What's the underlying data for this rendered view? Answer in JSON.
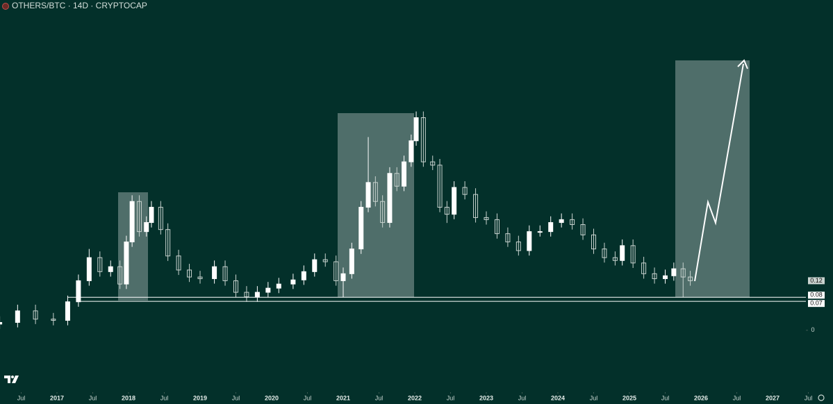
{
  "chart_data": {
    "type": "candlestick",
    "title": "OTHERS/BTC · 14D · CRYPTOCAP",
    "x": [
      2016.2,
      2016.45,
      2016.7,
      2016.95,
      2017.15,
      2017.3,
      2017.45,
      2017.6,
      2017.75,
      2017.88,
      2017.97,
      2018.05,
      2018.15,
      2018.25,
      2018.32,
      2018.45,
      2018.55,
      2018.7,
      2018.85,
      2019.0,
      2019.2,
      2019.35,
      2019.5,
      2019.65,
      2019.8,
      2019.95,
      2020.1,
      2020.3,
      2020.45,
      2020.6,
      2020.75,
      2020.9,
      2021.0,
      2021.12,
      2021.25,
      2021.35,
      2021.45,
      2021.55,
      2021.65,
      2021.75,
      2021.85,
      2021.95,
      2022.02,
      2022.12,
      2022.25,
      2022.35,
      2022.45,
      2022.55,
      2022.7,
      2022.85,
      2023.0,
      2023.15,
      2023.3,
      2023.45,
      2023.6,
      2023.75,
      2023.9,
      2024.05,
      2024.2,
      2024.35,
      2024.5,
      2024.65,
      2024.8,
      2024.9,
      2025.05,
      2025.2,
      2025.35,
      2025.5,
      2025.62,
      2025.75,
      2025.85
    ],
    "open": [
      0.015,
      0.019,
      0.047,
      0.027,
      0.024,
      0.069,
      0.12,
      0.176,
      0.142,
      0.154,
      0.112,
      0.214,
      0.312,
      0.239,
      0.261,
      0.298,
      0.244,
      0.18,
      0.146,
      0.129,
      0.125,
      0.154,
      0.12,
      0.092,
      0.081,
      0.092,
      0.102,
      0.112,
      0.122,
      0.142,
      0.171,
      0.166,
      0.12,
      0.137,
      0.197,
      0.298,
      0.358,
      0.312,
      0.261,
      0.38,
      0.349,
      0.408,
      0.459,
      0.515,
      0.408,
      0.4,
      0.298,
      0.281,
      0.346,
      0.329,
      0.273,
      0.268,
      0.234,
      0.214,
      0.193,
      0.239,
      0.239,
      0.261,
      0.268,
      0.256,
      0.231,
      0.197,
      0.176,
      0.169,
      0.205,
      0.163,
      0.137,
      0.125,
      0.132,
      0.149,
      0.129
    ],
    "high": [
      0.034,
      0.062,
      0.062,
      0.042,
      0.084,
      0.135,
      0.197,
      0.191,
      0.169,
      0.169,
      0.229,
      0.327,
      0.327,
      0.276,
      0.313,
      0.313,
      0.259,
      0.195,
      0.161,
      0.144,
      0.169,
      0.169,
      0.135,
      0.107,
      0.107,
      0.117,
      0.127,
      0.137,
      0.157,
      0.186,
      0.186,
      0.181,
      0.152,
      0.212,
      0.313,
      0.468,
      0.373,
      0.327,
      0.395,
      0.395,
      0.423,
      0.474,
      0.53,
      0.53,
      0.423,
      0.415,
      0.313,
      0.361,
      0.361,
      0.344,
      0.288,
      0.283,
      0.249,
      0.229,
      0.254,
      0.254,
      0.276,
      0.283,
      0.283,
      0.271,
      0.246,
      0.212,
      0.191,
      0.22,
      0.22,
      0.178,
      0.152,
      0.147,
      0.164,
      0.164,
      0.144
    ],
    "low": [
      0.003,
      0.007,
      0.015,
      0.012,
      0.012,
      0.057,
      0.108,
      0.13,
      0.13,
      0.1,
      0.1,
      0.202,
      0.227,
      0.227,
      0.249,
      0.232,
      0.168,
      0.134,
      0.117,
      0.113,
      0.113,
      0.108,
      0.08,
      0.069,
      0.069,
      0.08,
      0.09,
      0.1,
      0.11,
      0.13,
      0.154,
      0.108,
      0.08,
      0.125,
      0.185,
      0.286,
      0.3,
      0.249,
      0.249,
      0.337,
      0.337,
      0.396,
      0.447,
      0.396,
      0.388,
      0.286,
      0.26,
      0.269,
      0.317,
      0.261,
      0.256,
      0.222,
      0.202,
      0.181,
      0.181,
      0.227,
      0.227,
      0.249,
      0.244,
      0.219,
      0.185,
      0.164,
      0.157,
      0.157,
      0.151,
      0.125,
      0.113,
      0.113,
      0.12,
      0.08,
      0.108
    ],
    "close": [
      0.019,
      0.047,
      0.027,
      0.024,
      0.069,
      0.12,
      0.176,
      0.142,
      0.154,
      0.112,
      0.214,
      0.312,
      0.239,
      0.261,
      0.298,
      0.244,
      0.18,
      0.146,
      0.129,
      0.125,
      0.154,
      0.12,
      0.092,
      0.081,
      0.092,
      0.102,
      0.112,
      0.122,
      0.142,
      0.171,
      0.166,
      0.12,
      0.137,
      0.197,
      0.298,
      0.358,
      0.312,
      0.261,
      0.38,
      0.349,
      0.408,
      0.459,
      0.515,
      0.408,
      0.4,
      0.298,
      0.281,
      0.346,
      0.329,
      0.273,
      0.268,
      0.234,
      0.214,
      0.193,
      0.239,
      0.239,
      0.261,
      0.268,
      0.256,
      0.231,
      0.197,
      0.176,
      0.169,
      0.205,
      0.163,
      0.137,
      0.125,
      0.132,
      0.149,
      0.129,
      0.12
    ],
    "up_color": "#ffffff",
    "down_color": "#c9d3cf",
    "xlim": [
      2016.204,
      2027.466
    ],
    "ylim": [
      -0.15,
      0.8
    ],
    "xticks": [
      {
        "value": 2016.5,
        "label": "Jul"
      },
      2017,
      {
        "value": 2017.5,
        "label": "Jul"
      },
      2018,
      {
        "value": 2018.5,
        "label": "Jul"
      },
      2019,
      {
        "value": 2019.5,
        "label": "Jul"
      },
      2020,
      {
        "value": 2020.5,
        "label": "Jul"
      },
      2021,
      {
        "value": 2021.5,
        "label": "Jul"
      },
      2022,
      {
        "value": 2022.5,
        "label": "Jul"
      },
      2023,
      {
        "value": 2023.5,
        "label": "Jul"
      },
      2024,
      {
        "value": 2024.5,
        "label": "Jul"
      },
      2025,
      {
        "value": 2025.5,
        "label": "Jul"
      },
      2026,
      {
        "value": 2026.5,
        "label": "Jul"
      },
      2027,
      {
        "value": 2027.5,
        "label": "Jul"
      }
    ],
    "yticks": [
      0
    ],
    "last_price": 0.12,
    "levels": [
      0.08,
      0.07
    ]
  }
}
